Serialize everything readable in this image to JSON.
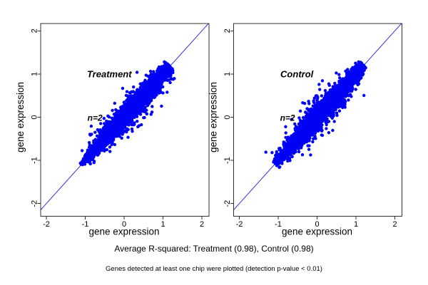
{
  "figure": {
    "background": "#ffffff",
    "point_color": "#0101f5",
    "line_color": "#3333dd",
    "axis_color": "#333333",
    "panel_label_color": "#7f7f7f"
  },
  "captions": {
    "r_squared": "Average R-squared: Treatment (0.98), Control (0.98)",
    "note": "Genes detected at least one chip were plotted (detection p-value < 0.01)"
  },
  "chart_data": [
    {
      "type": "scatter",
      "title": "Treatment",
      "xlabel": "gene expression",
      "ylabel": "gene expression",
      "xlim": [
        -2.15,
        2.18
      ],
      "ylim": [
        -2.29,
        2.17
      ],
      "xticks": [
        -2,
        -1,
        0,
        1,
        2
      ],
      "yticks": [
        -2,
        -1,
        0,
        1,
        2
      ],
      "annotation": "n=2",
      "annotation_xy": [
        -0.75,
        -0.02
      ],
      "title_xy": [
        -0.38,
        1.0
      ],
      "reference_line": "y = x",
      "r_squared": 0.98,
      "point_cloud": {
        "n": 4600,
        "seed": 11,
        "t_mean": 0.15,
        "t_sd": 0.5,
        "t_min": -1.1,
        "t_max": 1.18,
        "uniform_frac": 0.28,
        "uniform_lo": -1.0,
        "uniform_hi": 1.1,
        "taper_center": 0.05,
        "taper_span_low": 1.18,
        "taper_span_high": 1.6,
        "taper_floor": 0.18,
        "clamp_spread": 0.04,
        "perp_max": 0.5,
        "perp_mix": [
          [
            0.87,
            0.08
          ],
          [
            0.11,
            0.15
          ],
          [
            0.02,
            0.26
          ]
        ]
      }
    },
    {
      "type": "scatter",
      "title": "Control",
      "xlabel": "gene expression",
      "ylabel": "gene expression",
      "xlim": [
        -2.15,
        2.18
      ],
      "ylim": [
        -2.29,
        2.17
      ],
      "xticks": [
        -2,
        -1,
        0,
        1,
        2
      ],
      "yticks": [
        -2,
        -1,
        0,
        1,
        2
      ],
      "annotation": "n=2",
      "annotation_xy": [
        -0.76,
        -0.02
      ],
      "title_xy": [
        -0.52,
        1.0
      ],
      "reference_line": "y = x",
      "r_squared": 0.98,
      "point_cloud": {
        "n": 4600,
        "seed": 77,
        "t_mean": 0.1,
        "t_sd": 0.5,
        "t_min": -1.08,
        "t_max": 1.2,
        "uniform_frac": 0.28,
        "uniform_lo": -1.0,
        "uniform_hi": 1.12,
        "taper_center": 0.0,
        "taper_span_low": 1.28,
        "taper_span_high": 1.5,
        "taper_floor": 0.18,
        "clamp_spread": 0.04,
        "perp_max": 0.5,
        "perp_mix": [
          [
            0.87,
            0.08
          ],
          [
            0.11,
            0.15
          ],
          [
            0.02,
            0.26
          ]
        ]
      }
    }
  ]
}
